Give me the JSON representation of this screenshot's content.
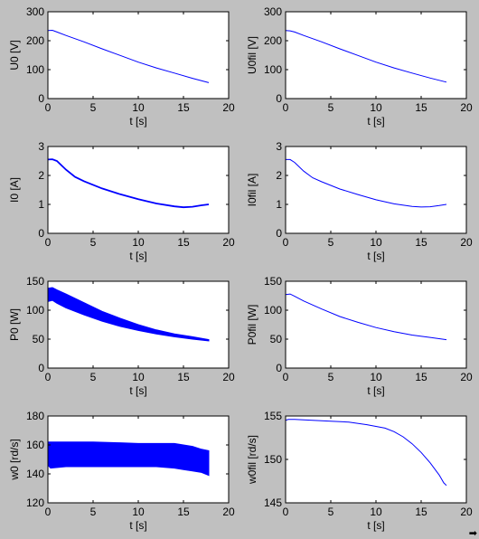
{
  "colors": {
    "background": "#c0c0c0",
    "axes_face": "#ffffff",
    "line": "#0000ff",
    "text": "#000000"
  },
  "chart_data": [
    {
      "type": "line",
      "ylabel": "U0 [V]",
      "xlabel": "t [s]",
      "xlim": [
        0,
        20
      ],
      "ylim": [
        0,
        300
      ],
      "xticks": [
        "0",
        "5",
        "10",
        "15",
        "20"
      ],
      "yticks": [
        "0",
        "100",
        "200",
        "300"
      ],
      "series": [
        {
          "x": [
            0,
            0.5,
            1,
            2,
            4,
            6,
            8,
            10,
            12,
            14,
            16,
            17.8
          ],
          "y": [
            235,
            236,
            230,
            218,
            196,
            172,
            149,
            126,
            106,
            88,
            70,
            55
          ]
        }
      ]
    },
    {
      "type": "line",
      "ylabel": "U0fil [V]",
      "xlabel": "t [s]",
      "xlim": [
        0,
        20
      ],
      "ylim": [
        0,
        300
      ],
      "xticks": [
        "0",
        "5",
        "10",
        "15",
        "20"
      ],
      "yticks": [
        "0",
        "100",
        "200",
        "300"
      ],
      "series": [
        {
          "x": [
            0,
            0.5,
            1,
            2,
            4,
            6,
            8,
            10,
            12,
            14,
            16,
            17.8
          ],
          "y": [
            235,
            234,
            230,
            218,
            196,
            172,
            149,
            126,
            106,
            88,
            71,
            57
          ]
        }
      ]
    },
    {
      "type": "line",
      "ylabel": "I0 [A]",
      "xlabel": "t [s]",
      "xlim": [
        0,
        20
      ],
      "ylim": [
        0,
        3
      ],
      "xticks": [
        "0",
        "5",
        "10",
        "15",
        "20"
      ],
      "yticks": [
        "0",
        "1",
        "2",
        "3"
      ],
      "series": [
        {
          "x": [
            0,
            0.5,
            1,
            2,
            3,
            4,
            6,
            8,
            10,
            12,
            14,
            15,
            16,
            17,
            17.8
          ],
          "y": [
            2.55,
            2.56,
            2.5,
            2.2,
            1.95,
            1.8,
            1.55,
            1.35,
            1.18,
            1.03,
            0.93,
            0.9,
            0.92,
            0.97,
            1.0
          ]
        }
      ]
    },
    {
      "type": "line",
      "ylabel": "I0fil [A]",
      "xlabel": "t [s]",
      "xlim": [
        0,
        20
      ],
      "ylim": [
        0,
        3
      ],
      "xticks": [
        "0",
        "5",
        "10",
        "15",
        "20"
      ],
      "yticks": [
        "0",
        "1",
        "2",
        "3"
      ],
      "series": [
        {
          "x": [
            0,
            0.5,
            1,
            2,
            3,
            4,
            6,
            8,
            10,
            12,
            14,
            15,
            16,
            17,
            17.8
          ],
          "y": [
            2.55,
            2.55,
            2.45,
            2.15,
            1.92,
            1.78,
            1.53,
            1.34,
            1.16,
            1.02,
            0.93,
            0.91,
            0.92,
            0.96,
            1.0
          ]
        }
      ]
    },
    {
      "type": "area",
      "ylabel": "P0 [W]",
      "xlabel": "t [s]",
      "xlim": [
        0,
        20
      ],
      "ylim": [
        0,
        150
      ],
      "xticks": [
        "0",
        "5",
        "10",
        "15",
        "20"
      ],
      "yticks": [
        "0",
        "50",
        "100",
        "150"
      ],
      "series": [
        {
          "x": [
            0,
            0.5,
            1,
            2,
            4,
            6,
            8,
            10,
            12,
            14,
            16,
            17.8
          ],
          "upper": [
            138,
            139,
            135,
            128,
            113,
            98,
            86,
            75,
            66,
            59,
            54,
            49
          ],
          "lower": [
            115,
            117,
            112,
            104,
            92,
            81,
            72,
            65,
            59,
            54,
            50,
            47
          ]
        }
      ]
    },
    {
      "type": "line",
      "ylabel": "P0fil [W]",
      "xlabel": "t [s]",
      "xlim": [
        0,
        20
      ],
      "ylim": [
        0,
        150
      ],
      "xticks": [
        "0",
        "5",
        "10",
        "15",
        "20"
      ],
      "yticks": [
        "0",
        "50",
        "100",
        "150"
      ],
      "series": [
        {
          "x": [
            0,
            0.5,
            1,
            2,
            4,
            6,
            8,
            10,
            12,
            14,
            16,
            17.8
          ],
          "y": [
            127,
            128,
            124,
            116,
            102,
            89,
            79,
            70,
            63,
            57,
            53,
            49
          ]
        }
      ]
    },
    {
      "type": "area",
      "ylabel": "w0 [rd/s]",
      "xlabel": "t [s]",
      "xlim": [
        0,
        20
      ],
      "ylim": [
        120,
        180
      ],
      "xticks": [
        "0",
        "5",
        "10",
        "15",
        "20"
      ],
      "yticks": [
        "120",
        "140",
        "160",
        "180"
      ],
      "series": [
        {
          "x": [
            0,
            0.3,
            2,
            5,
            8,
            10,
            12,
            14,
            15,
            16,
            17,
            17.8
          ],
          "upper": [
            162,
            162,
            162,
            162,
            161.5,
            161,
            161,
            161,
            160,
            159,
            157,
            156
          ],
          "lower": [
            146,
            144,
            145,
            145,
            145,
            145,
            145,
            144,
            143,
            142,
            141,
            139
          ]
        }
      ]
    },
    {
      "type": "line",
      "ylabel": "w0fil [rd/s]",
      "xlabel": "t [s]",
      "xlim": [
        0,
        20
      ],
      "ylim": [
        145,
        155
      ],
      "xticks": [
        "0",
        "5",
        "10",
        "15",
        "20"
      ],
      "yticks": [
        "145",
        "150",
        "155"
      ],
      "series": [
        {
          "x": [
            0,
            0.3,
            1,
            3,
            5,
            7,
            9,
            11,
            12,
            13,
            14,
            15,
            16,
            17,
            17.5,
            17.8
          ],
          "y": [
            154.5,
            154.6,
            154.6,
            154.5,
            154.4,
            154.3,
            154.0,
            153.6,
            153.2,
            152.6,
            151.8,
            150.8,
            149.6,
            148.2,
            147.3,
            147.0
          ]
        }
      ]
    }
  ]
}
